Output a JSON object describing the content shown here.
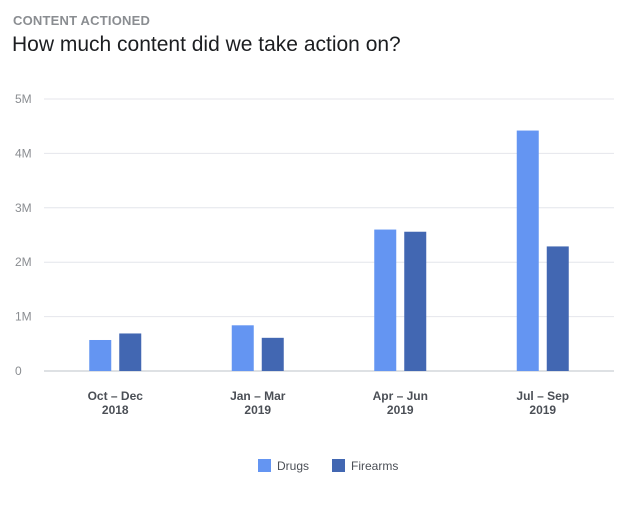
{
  "header": {
    "kicker": "CONTENT ACTIONED",
    "title": "How much content did we take action on?"
  },
  "colors": {
    "drugs": "#6495f2",
    "firearms": "#4267b2",
    "grid": "#e4e6eb",
    "axis": "#bec3c9"
  },
  "chart_data": {
    "type": "bar",
    "categories": [
      {
        "line1": "Oct – Dec",
        "line2": "2018"
      },
      {
        "line1": "Jan – Mar",
        "line2": "2019"
      },
      {
        "line1": "Apr – Jun",
        "line2": "2019"
      },
      {
        "line1": "Jul – Sep",
        "line2": "2019"
      }
    ],
    "series": [
      {
        "name": "Drugs",
        "values": [
          0.57,
          0.84,
          2.6,
          4.42
        ]
      },
      {
        "name": "Firearms",
        "values": [
          0.69,
          0.61,
          2.56,
          2.29
        ]
      }
    ],
    "yticks": [
      {
        "value": 0,
        "label": "0"
      },
      {
        "value": 1,
        "label": "1M"
      },
      {
        "value": 2,
        "label": "2M"
      },
      {
        "value": 3,
        "label": "3M"
      },
      {
        "value": 4,
        "label": "4M"
      },
      {
        "value": 5,
        "label": "5M"
      }
    ],
    "ylim": [
      0,
      5
    ],
    "unit": "millions",
    "grid": true,
    "legend_position": "bottom-center"
  }
}
